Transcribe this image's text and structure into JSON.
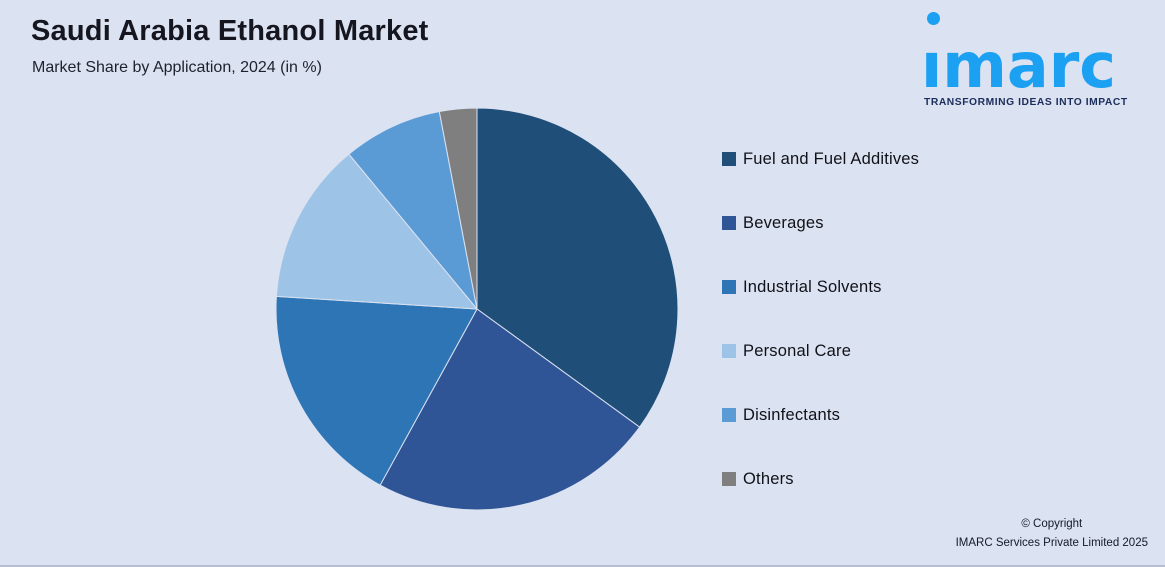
{
  "header": {
    "title": "Saudi Arabia Ethanol Market",
    "subtitle": "Market Share by Application, 2024 (in %)"
  },
  "logo": {
    "brand": "imarc",
    "tagline": "TRANSFORMING IDEAS INTO IMPACT",
    "brand_color": "#1BA0F2",
    "tagline_color": "#1B2D5B"
  },
  "chart_data": {
    "type": "pie",
    "title": "Saudi Arabia Ethanol Market",
    "subtitle": "Market Share by Application, 2024 (in %)",
    "unit": "%",
    "categories": [
      "Fuel and Fuel Additives",
      "Beverages",
      "Industrial Solvents",
      "Personal Care",
      "Disinfectants",
      "Others"
    ],
    "values": [
      35,
      23,
      18,
      13,
      8,
      3
    ],
    "colors": [
      "#1F4E79",
      "#2F5597",
      "#2E75B6",
      "#9DC3E6",
      "#5B9BD5",
      "#7F7F7F"
    ],
    "start_angle_deg": 0,
    "direction": "clockwise",
    "legend_position": "right",
    "data_labels": false,
    "background_color": "#DBE2F1"
  },
  "footer": {
    "line1": "© Copyright",
    "line2": "IMARC Services Private Limited 2025"
  }
}
